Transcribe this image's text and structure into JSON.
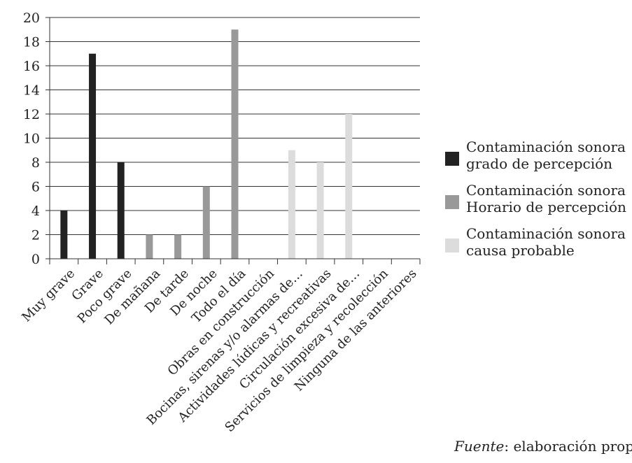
{
  "chart_data": {
    "type": "bar",
    "categories": [
      "Muy grave",
      "Grave",
      "Poco grave",
      "De mañana",
      "De tarde",
      "De noche",
      "Todo el día",
      "Obras en construcción",
      "Bocinas, sirenas y/o alarmas de…",
      "Actividades lúdicas y recreativas",
      "Circulación excesiva de…",
      "Servicios de limpieza y recolección",
      "Ninguna de las anteriores"
    ],
    "series": [
      {
        "name": "Contaminación sonora grado de percepción",
        "color": "#222222",
        "values": [
          4,
          17,
          8,
          0,
          0,
          0,
          0,
          0,
          0,
          0,
          0,
          0,
          0
        ]
      },
      {
        "name": "Contaminación sonora Horario de percepción",
        "color": "#999999",
        "values": [
          0,
          0,
          0,
          2,
          2,
          6,
          19,
          0,
          0,
          0,
          0,
          0,
          0
        ]
      },
      {
        "name": "Contaminación sonora causa probable",
        "color": "#dcdcdc",
        "values": [
          0,
          0,
          0,
          0,
          0,
          0,
          0,
          0,
          9,
          8,
          12,
          0,
          0
        ]
      }
    ],
    "ylim": [
      0,
      20
    ],
    "yticks": [
      0,
      2,
      4,
      6,
      8,
      10,
      12,
      14,
      16,
      18,
      20
    ],
    "grid": true,
    "legend_position": "right"
  },
  "legend": [
    {
      "line1": "Contaminación sonora",
      "line2": "grado de percepción",
      "color": "#222222"
    },
    {
      "line1": "Contaminación sonora",
      "line2": "Horario de percepción",
      "color": "#999999"
    },
    {
      "line1": "Contaminación sonora",
      "line2": "causa probable",
      "color": "#dcdcdc"
    }
  ],
  "source": {
    "label": "Fuente",
    "text": ": elaboración propia"
  }
}
